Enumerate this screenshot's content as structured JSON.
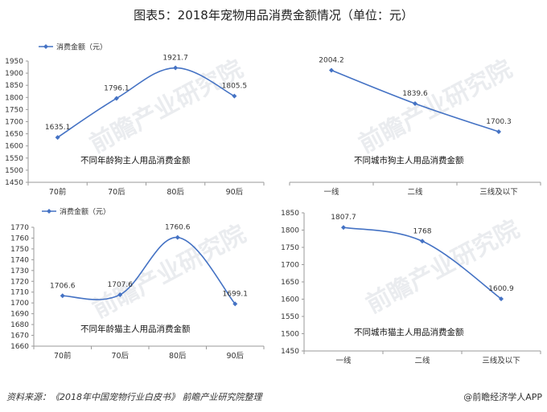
{
  "page_title": "图表5：2018年宠物用品消费金额情况（单位：元）",
  "source": "资料来源：《2018年中国宠物行业白皮书》 前瞻产业研究院整理",
  "brand": "@前瞻经济学人APP",
  "watermark": "前瞻产业研究院",
  "colors": {
    "line": "#4472C4",
    "axis": "#9a9a9a",
    "text": "#333333"
  },
  "chart_data": [
    {
      "type": "line",
      "title": "不同年龄狗主人用品消费金额",
      "legend": "消费金额（元）",
      "legend_position": "top-left",
      "categories": [
        "70前",
        "70后",
        "80后",
        "90后"
      ],
      "series": [
        {
          "name": "消费金额（元）",
          "values": [
            1635.1,
            1796.1,
            1921.7,
            1805.5
          ]
        }
      ],
      "labels": [
        "1635.1",
        "1796.1",
        "1921.7",
        "1805.5"
      ],
      "yticks": [
        "1950",
        "1900",
        "1850",
        "1800",
        "1750",
        "1700",
        "1650",
        "1600",
        "1550",
        "1500",
        "1450"
      ],
      "ylim": [
        1450,
        1950
      ],
      "show_y_axis": true,
      "grid": false
    },
    {
      "type": "line",
      "title": "不同城市狗主人用品消费金额",
      "categories": [
        "一线",
        "二线",
        "三线及以下"
      ],
      "series": [
        {
          "values": [
            2004.2,
            1839.6,
            1700.3
          ]
        }
      ],
      "labels": [
        "2004.2",
        "1839.6",
        "1700.3"
      ],
      "ylim": [
        1450,
        2050
      ],
      "show_y_axis": false,
      "grid": false
    },
    {
      "type": "line",
      "title": "不同年龄猫主人用品消费金额",
      "legend": "消费金额（元）",
      "legend_position": "top-left",
      "categories": [
        "70前",
        "70后",
        "80后",
        "90后"
      ],
      "series": [
        {
          "name": "消费金额（元）",
          "values": [
            1706.6,
            1707.6,
            1760.6,
            1699.1
          ]
        }
      ],
      "labels": [
        "1706.6",
        "1707.6",
        "1760.6",
        "1699.1"
      ],
      "yticks": [
        "1770",
        "1760",
        "1750",
        "1740",
        "1730",
        "1720",
        "1710",
        "1700",
        "1690",
        "1680",
        "1670",
        "1660"
      ],
      "ylim": [
        1660,
        1770
      ],
      "show_y_axis": true,
      "grid": false
    },
    {
      "type": "line",
      "title": "不同城市猫主人用品消费金额",
      "categories": [
        "一线",
        "二线",
        "三线及以下"
      ],
      "series": [
        {
          "values": [
            1807.7,
            1768,
            1600.9
          ]
        }
      ],
      "labels": [
        "1807.7",
        "1768",
        "1600.9"
      ],
      "yticks": [
        "1850",
        "1800",
        "1750",
        "1700",
        "1650",
        "1600",
        "1550",
        "1500",
        "1450"
      ],
      "ylim": [
        1450,
        1850
      ],
      "show_y_axis": true,
      "grid": false
    }
  ]
}
